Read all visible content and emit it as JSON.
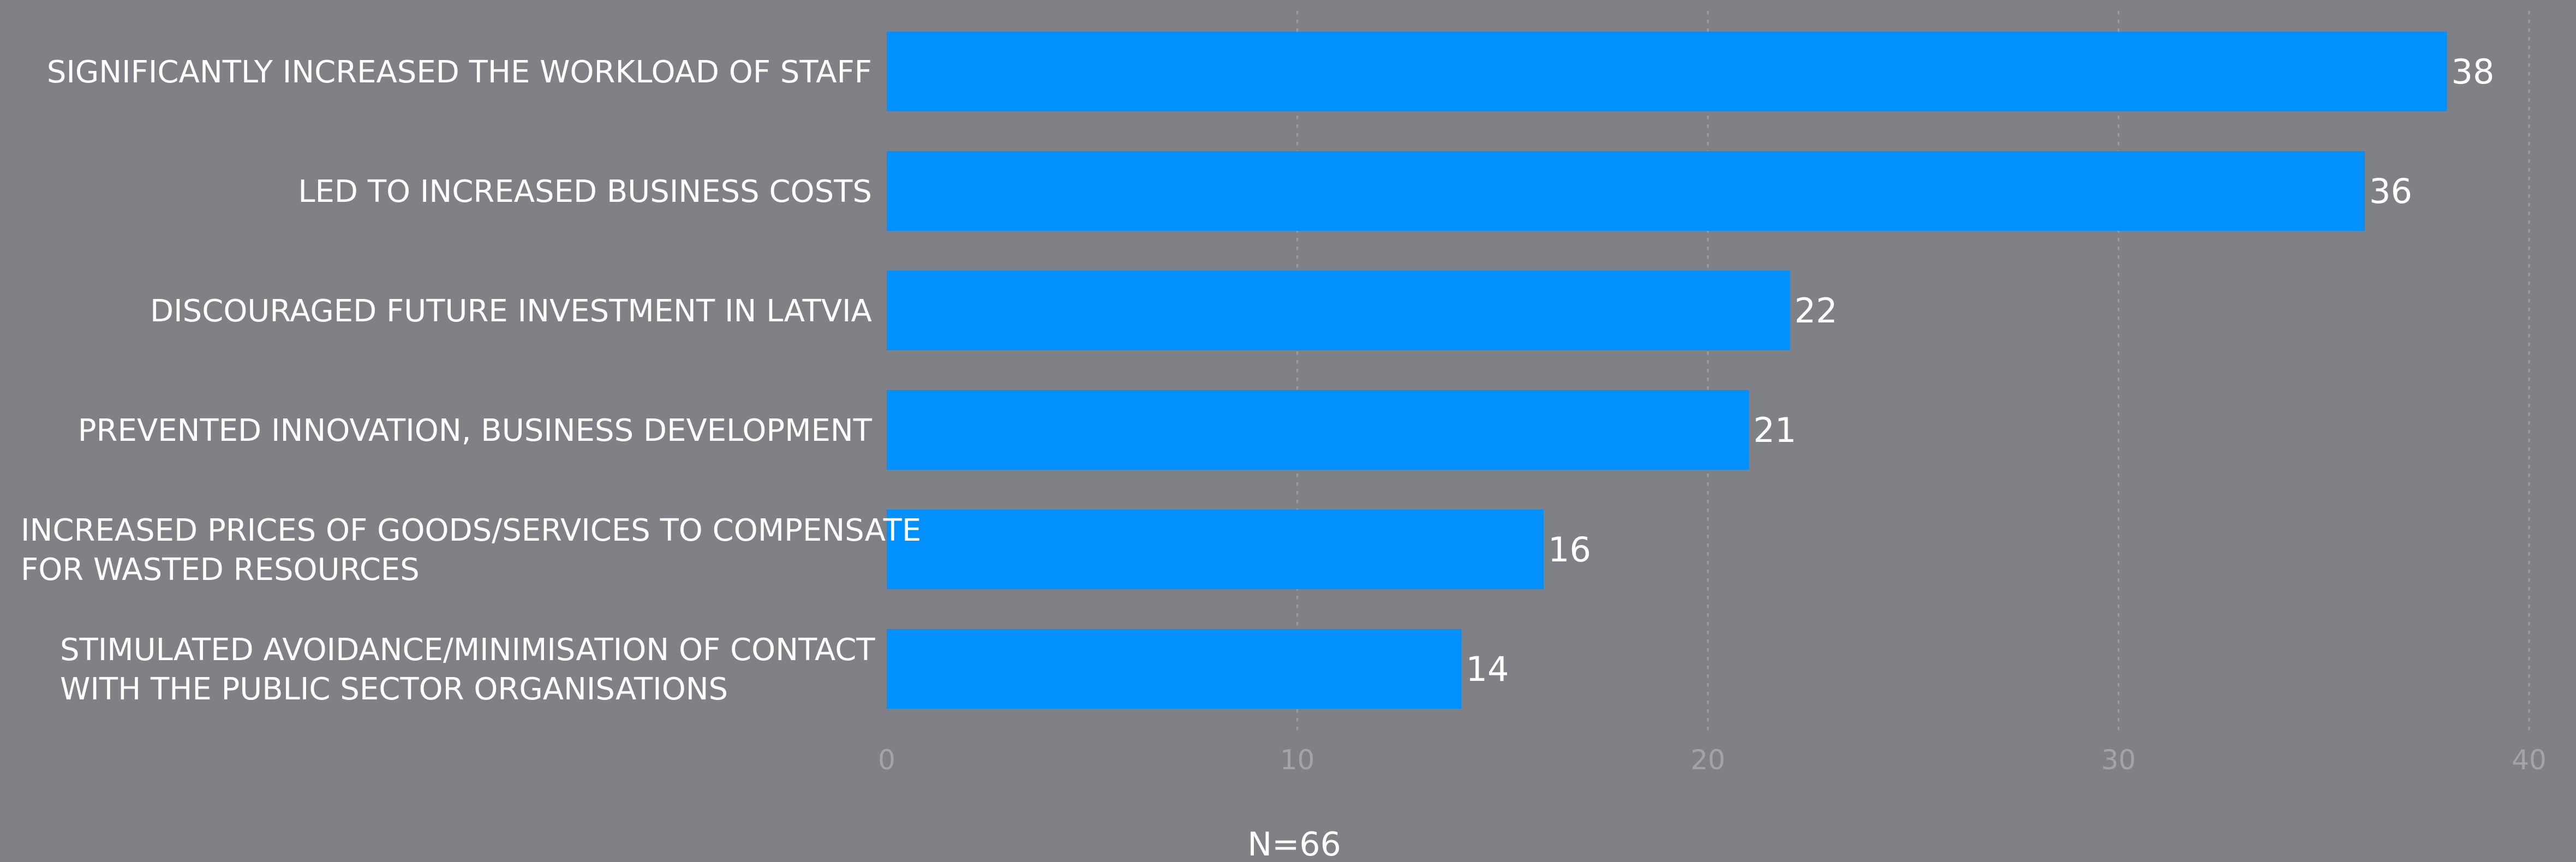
{
  "chart_data": {
    "type": "bar",
    "orientation": "horizontal",
    "categories": [
      [
        "SIGNIFICANTLY INCREASED THE WORKLOAD OF STAFF"
      ],
      [
        "LED TO INCREASED BUSINESS COSTS"
      ],
      [
        "DISCOURAGED FUTURE INVESTMENT IN LATVIA"
      ],
      [
        "PREVENTED INNOVATION, BUSINESS DEVELOPMENT"
      ],
      [
        "INCREASED PRICES OF GOODS/SERVICES TO COMPENSATE",
        "FOR WASTED RESOURCES"
      ],
      [
        "STIMULATED AVOIDANCE/MINIMISATION OF CONTACT",
        "WITH THE PUBLIC SECTOR ORGANISATIONS"
      ]
    ],
    "values": [
      38,
      36,
      22,
      21,
      16,
      14
    ],
    "value_labels": [
      "38",
      "36",
      "22",
      "21",
      "16",
      "14"
    ],
    "xlim": [
      0,
      40
    ],
    "ticks": [
      0,
      10,
      20,
      30,
      40
    ],
    "tick_labels": [
      "0",
      "10",
      "20",
      "30",
      "40"
    ],
    "grid": true,
    "legend": "none",
    "note": "N=66",
    "colors": {
      "background": "#808186",
      "bar": "#0091ff",
      "text": "#ffffff",
      "tick_text": "#a3a4a8",
      "grid": "#9a9b9f"
    }
  }
}
